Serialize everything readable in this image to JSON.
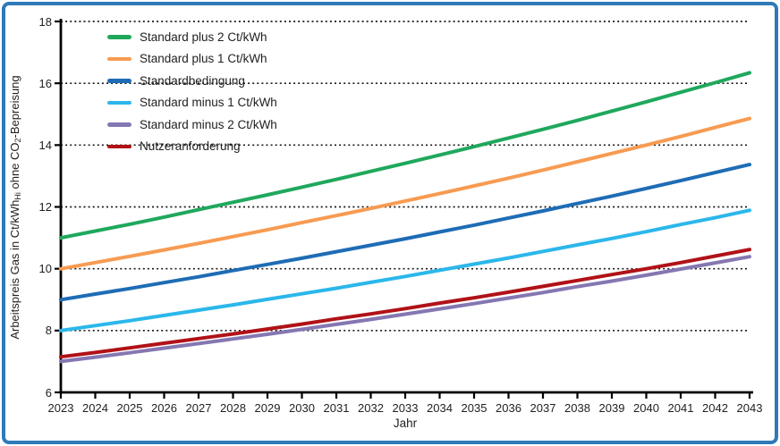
{
  "frame": {
    "border_color": "#2e7ab8",
    "background": "#ffffff"
  },
  "axis": {
    "x_title": "Jahr",
    "y_title_parts": {
      "p1": "Arbeitspreis Gas in Ct/kWh",
      "sub1": "Hi",
      "p2": " ohne CO",
      "sub2": "2",
      "p3": "-Bepreisung"
    },
    "line_color": "#000000",
    "text_color": "#1f1f1f",
    "gridline_color": "#1a1a1a"
  },
  "chart_data": {
    "type": "line",
    "title": "",
    "xlabel": "Jahr",
    "ylabel": "Arbeitspreis Gas in Ct/kWh_Hi ohne CO2-Bepreisung",
    "x": [
      2023,
      2024,
      2025,
      2026,
      2027,
      2028,
      2029,
      2030,
      2031,
      2032,
      2033,
      2034,
      2035,
      2036,
      2037,
      2038,
      2039,
      2040,
      2041,
      2042,
      2043
    ],
    "xlim": [
      2023,
      2043
    ],
    "ylim": [
      6,
      18
    ],
    "yticks": [
      6,
      8,
      10,
      12,
      14,
      16,
      18
    ],
    "grid": "horizontal-dotted",
    "legend_position": "top-left-inside",
    "series": [
      {
        "name": "Standard plus 2 Ct/kWh",
        "color": "#1fa85c",
        "values": [
          11.0,
          11.22,
          11.44,
          11.67,
          11.91,
          12.15,
          12.39,
          12.64,
          12.89,
          13.15,
          13.41,
          13.68,
          13.95,
          14.23,
          14.51,
          14.8,
          15.1,
          15.4,
          15.71,
          16.02,
          16.34
        ]
      },
      {
        "name": "Standard plus 1 Ct/kWh",
        "color": "#f79b52",
        "values": [
          10.0,
          10.2,
          10.4,
          10.61,
          10.82,
          11.04,
          11.26,
          11.49,
          11.72,
          11.95,
          12.19,
          12.43,
          12.68,
          12.93,
          13.19,
          13.46,
          13.73,
          14.0,
          14.28,
          14.57,
          14.86
        ]
      },
      {
        "name": "Standardbedingung",
        "color": "#1e6cb5",
        "values": [
          9.0,
          9.18,
          9.36,
          9.55,
          9.74,
          9.94,
          10.14,
          10.34,
          10.55,
          10.76,
          10.97,
          11.19,
          11.41,
          11.64,
          11.87,
          12.11,
          12.35,
          12.6,
          12.85,
          13.11,
          13.37
        ]
      },
      {
        "name": "Standard minus 1 Ct/kWh",
        "color": "#2bb7eb",
        "values": [
          8.0,
          8.16,
          8.32,
          8.49,
          8.66,
          8.83,
          9.01,
          9.19,
          9.37,
          9.56,
          9.75,
          9.95,
          10.15,
          10.35,
          10.56,
          10.77,
          10.98,
          11.2,
          11.43,
          11.65,
          11.89
        ]
      },
      {
        "name": "Standard minus 2 Ct/kWh",
        "color": "#8577b1",
        "values": [
          7.0,
          7.14,
          7.28,
          7.43,
          7.58,
          7.73,
          7.88,
          8.04,
          8.2,
          8.36,
          8.53,
          8.7,
          8.87,
          9.05,
          9.23,
          9.42,
          9.6,
          9.79,
          9.99,
          10.19,
          10.39
        ]
      },
      {
        "name": "Nutzeranforderung",
        "color": "#b01217",
        "values": [
          7.15,
          7.29,
          7.44,
          7.59,
          7.74,
          7.89,
          8.05,
          8.21,
          8.38,
          8.54,
          8.71,
          8.89,
          9.06,
          9.24,
          9.43,
          9.62,
          9.81,
          10.0,
          10.2,
          10.41,
          10.62
        ]
      }
    ]
  }
}
